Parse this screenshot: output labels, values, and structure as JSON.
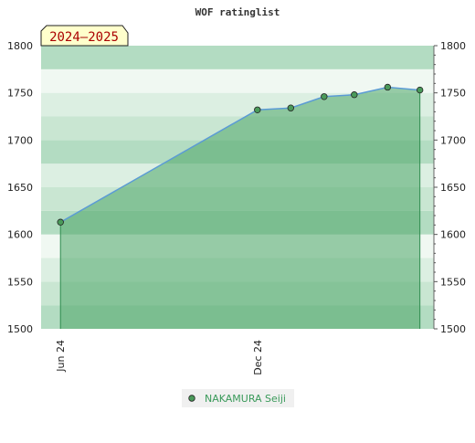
{
  "chart_data": {
    "type": "area",
    "title": "WOF ratinglist",
    "season_label": "2024–2025",
    "xlabel": "",
    "ylabel": "",
    "ylim": [
      1500,
      1800
    ],
    "y_ticks": [
      1500,
      1550,
      1600,
      1650,
      1700,
      1750,
      1800
    ],
    "x_range": [
      "2024-05-14",
      "2025-05-14"
    ],
    "x_ticks": [
      {
        "date": "2024-06-01",
        "label": "Jun 24"
      },
      {
        "date": "2024-12-01",
        "label": "Dec 24"
      }
    ],
    "grid": true,
    "legend_position": "bottom-center",
    "series": [
      {
        "name": "NAKAMURA Seiji",
        "color": "#3a9a5a",
        "points": [
          {
            "x": "2024-06-01",
            "y": 1613
          },
          {
            "x": "2024-12-01",
            "y": 1732
          },
          {
            "x": "2025-01-01",
            "y": 1734
          },
          {
            "x": "2025-02-01",
            "y": 1746
          },
          {
            "x": "2025-03-01",
            "y": 1748
          },
          {
            "x": "2025-04-01",
            "y": 1756
          },
          {
            "x": "2025-05-01",
            "y": 1753
          }
        ]
      }
    ]
  },
  "colors": {
    "line": "#5b9bd5",
    "marker_fill": "#4a9a5a",
    "legend_text": "#3a9a5a",
    "season_badge_fill": "#ffffcc",
    "season_badge_text": "#aa0000"
  }
}
